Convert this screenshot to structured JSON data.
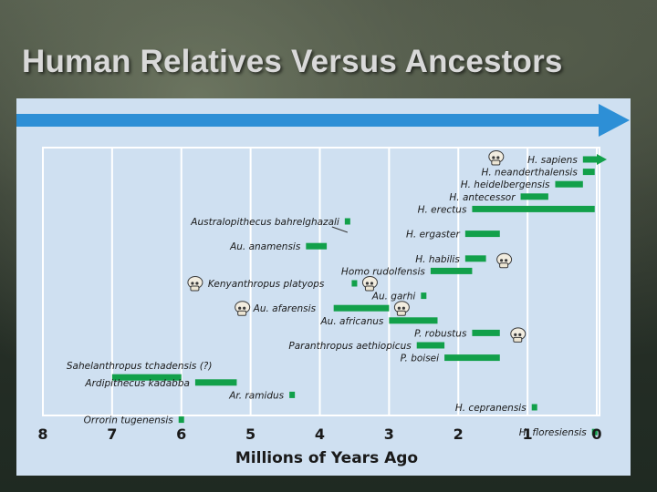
{
  "slide": {
    "title": "Human Relatives Versus Ancestors"
  },
  "colors": {
    "bar": "#12a04a",
    "arrow": "#2d8fd6",
    "panel": "#cfe0f1",
    "grid": "#ffffff",
    "text": "#1a1a1a"
  },
  "chart_data": {
    "type": "range-bar",
    "xlabel": "Millions of Years Ago",
    "xlim": [
      8,
      0
    ],
    "ticks": [
      8,
      7,
      6,
      5,
      4,
      3,
      2,
      1,
      0
    ],
    "grid": true,
    "arrow_direction": "toward-present",
    "series": [
      {
        "name": "H. sapiens",
        "start": 0.2,
        "end": 0,
        "arrow": true,
        "skull": true,
        "label_side": "left"
      },
      {
        "name": "H. neanderthalensis",
        "start": 0.2,
        "end": 0.03,
        "label_side": "left"
      },
      {
        "name": "H. heidelbergensis",
        "start": 0.6,
        "end": 0.2,
        "label_side": "left"
      },
      {
        "name": "H. antecessor",
        "start": 1.1,
        "end": 0.7,
        "label_side": "left"
      },
      {
        "name": "H. erectus",
        "start": 1.8,
        "end": 0.03,
        "label_side": "left"
      },
      {
        "name": "Australopithecus bahrelghazali",
        "start": 3.6,
        "end": 3.6,
        "label_side": "left",
        "pointer": true
      },
      {
        "name": "H. ergaster",
        "start": 1.9,
        "end": 1.4,
        "label_side": "left"
      },
      {
        "name": "Au. anamensis",
        "start": 4.2,
        "end": 3.9,
        "label_side": "left"
      },
      {
        "name": "H. habilis",
        "start": 1.9,
        "end": 1.6,
        "skull": true,
        "label_side": "left"
      },
      {
        "name": "Homo rudolfensis",
        "start": 2.4,
        "end": 1.8,
        "label_side": "left"
      },
      {
        "name": "Kenyanthropus platyops",
        "start": 3.5,
        "end": 3.5,
        "skull": true,
        "label_side": "right"
      },
      {
        "name": "Au. garhi",
        "start": 2.5,
        "end": 2.5,
        "label_side": "left"
      },
      {
        "name": "Au. afarensis",
        "start": 3.8,
        "end": 3.0,
        "skull": true,
        "label_side": "right"
      },
      {
        "name": "Au. africanus",
        "start": 3.0,
        "end": 2.3,
        "label_side": "left"
      },
      {
        "name": "P. robustus",
        "start": 1.8,
        "end": 1.4,
        "skull": true,
        "label_side": "left"
      },
      {
        "name": "Paranthropus aethiopicus",
        "start": 2.6,
        "end": 2.2,
        "label_side": "left"
      },
      {
        "name": "P. boisei",
        "start": 2.2,
        "end": 1.4,
        "label_side": "left"
      },
      {
        "name": "Sahelanthropus tchadensis (?)",
        "start": 7.0,
        "end": 6.0,
        "label_side": "above"
      },
      {
        "name": "Ardipithecus kadabba",
        "start": 5.8,
        "end": 5.2,
        "label_side": "left"
      },
      {
        "name": "Ar. ramidus",
        "start": 4.4,
        "end": 4.4,
        "label_side": "left"
      },
      {
        "name": "H. cepranensis",
        "start": 0.9,
        "end": 0.9,
        "label_side": "left"
      },
      {
        "name": "Orrorin tugenensis",
        "start": 6.0,
        "end": 6.0,
        "label_side": "left"
      },
      {
        "name": "H. floresiensis",
        "start": 0.03,
        "end": 0.03,
        "label_side": "left"
      }
    ]
  }
}
